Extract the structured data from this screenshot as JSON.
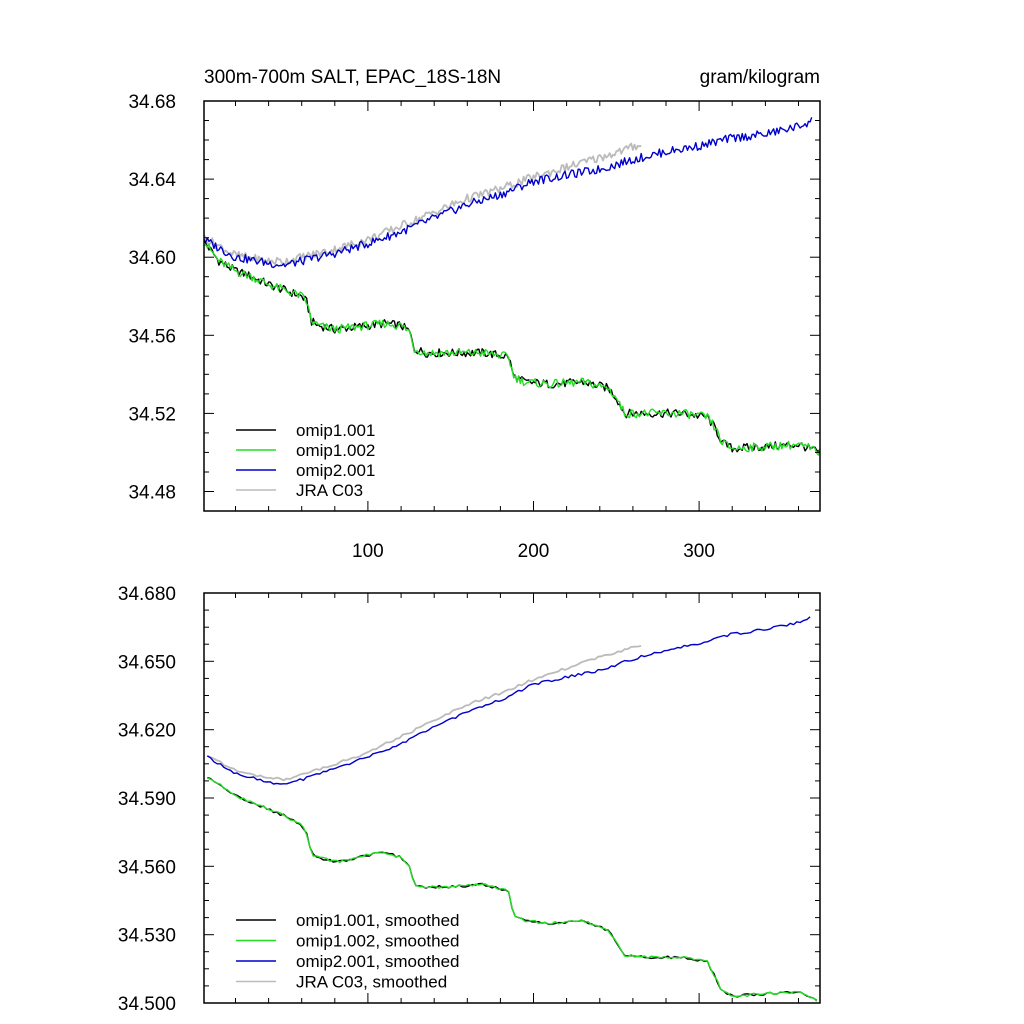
{
  "chart_data": [
    {
      "type": "line",
      "title": "300m-700m SALT, EPAC_18S-18N",
      "units": "gram/kilogram",
      "xlim": [
        1,
        373
      ],
      "ylim": [
        34.47,
        34.68
      ],
      "x_ticks": [
        100,
        200,
        300
      ],
      "x_tick_labels": [
        "100",
        "200",
        "300"
      ],
      "y_ticks": [
        34.48,
        34.52,
        34.56,
        34.6,
        34.64,
        34.68
      ],
      "y_tick_labels": [
        "34.48",
        "34.52",
        "34.56",
        "34.60",
        "34.64",
        "34.68"
      ],
      "legend_position": "bottom-left",
      "series": [
        {
          "name": "omip1.001",
          "color": "#000000",
          "x": [
            1,
            10,
            20,
            30,
            40,
            50,
            60,
            63,
            66,
            70,
            80,
            90,
            100,
            110,
            120,
            125,
            128,
            135,
            150,
            170,
            185,
            188,
            195,
            210,
            230,
            245,
            250,
            255,
            270,
            290,
            305,
            310,
            314,
            320,
            340,
            360,
            373
          ],
          "y": [
            34.608,
            34.598,
            34.593,
            34.59,
            34.586,
            34.583,
            34.58,
            34.577,
            34.567,
            34.565,
            34.563,
            34.564,
            34.565,
            34.566,
            34.565,
            34.562,
            34.553,
            34.551,
            34.551,
            34.551,
            34.549,
            34.539,
            34.536,
            34.535,
            34.536,
            34.533,
            34.528,
            34.52,
            34.52,
            34.52,
            34.518,
            34.512,
            34.505,
            34.502,
            34.503,
            34.504,
            34.5
          ]
        },
        {
          "name": "omip1.002",
          "color": "#22dd22",
          "x": [
            1,
            10,
            20,
            30,
            40,
            50,
            60,
            63,
            66,
            70,
            80,
            90,
            100,
            110,
            120,
            125,
            128,
            135,
            150,
            170,
            185,
            188,
            195,
            210,
            230,
            245,
            250,
            255,
            270,
            290,
            305,
            310,
            314,
            320,
            340,
            360,
            373
          ],
          "y": [
            34.608,
            34.598,
            34.593,
            34.59,
            34.586,
            34.583,
            34.58,
            34.577,
            34.567,
            34.565,
            34.563,
            34.564,
            34.565,
            34.566,
            34.565,
            34.562,
            34.553,
            34.551,
            34.551,
            34.551,
            34.549,
            34.539,
            34.536,
            34.535,
            34.536,
            34.533,
            34.528,
            34.52,
            34.52,
            34.52,
            34.518,
            34.512,
            34.505,
            34.502,
            34.503,
            34.504,
            34.5
          ]
        },
        {
          "name": "omip2.001",
          "color": "#0000cc",
          "x": [
            1,
            20,
            40,
            50,
            60,
            80,
            100,
            120,
            140,
            160,
            180,
            200,
            220,
            240,
            260,
            280,
            300,
            320,
            340,
            360,
            368
          ],
          "y": [
            34.609,
            34.6,
            34.597,
            34.596,
            34.598,
            34.602,
            34.607,
            34.613,
            34.62,
            34.627,
            34.632,
            34.639,
            34.642,
            34.645,
            34.65,
            34.654,
            34.657,
            34.661,
            34.663,
            34.667,
            34.67
          ]
        },
        {
          "name": "JRA C03",
          "color": "#bbbbbb",
          "x": [
            1,
            20,
            40,
            50,
            60,
            80,
            100,
            120,
            140,
            160,
            180,
            200,
            220,
            240,
            255,
            265
          ],
          "y": [
            34.61,
            34.601,
            34.598,
            34.598,
            34.6,
            34.604,
            34.609,
            34.616,
            34.623,
            34.63,
            34.635,
            34.641,
            34.646,
            34.651,
            34.655,
            34.658
          ]
        }
      ]
    },
    {
      "type": "line",
      "xlim": [
        1,
        373
      ],
      "ylim": [
        34.5,
        34.68
      ],
      "x_ticks": [
        100,
        200,
        300
      ],
      "y_ticks": [
        34.5,
        34.53,
        34.56,
        34.59,
        34.62,
        34.65,
        34.68
      ],
      "y_tick_labels": [
        "34.500",
        "34.530",
        "34.560",
        "34.590",
        "34.620",
        "34.650",
        "34.680"
      ],
      "legend_position": "bottom-left",
      "series": [
        {
          "name": "omip1.001, smoothed",
          "color": "#000000",
          "x": [
            3,
            10,
            20,
            30,
            40,
            50,
            60,
            63,
            66,
            70,
            80,
            90,
            100,
            110,
            120,
            125,
            128,
            135,
            150,
            170,
            185,
            188,
            195,
            210,
            230,
            245,
            250,
            255,
            270,
            290,
            305,
            310,
            314,
            320,
            340,
            360,
            371
          ],
          "y": [
            34.599,
            34.596,
            34.591,
            34.588,
            34.585,
            34.582,
            34.578,
            34.574,
            34.565,
            34.564,
            34.562,
            34.563,
            34.565,
            34.566,
            34.564,
            34.56,
            34.552,
            34.551,
            34.551,
            34.552,
            34.549,
            34.538,
            34.536,
            34.535,
            34.536,
            34.532,
            34.527,
            34.521,
            34.52,
            34.52,
            34.518,
            34.511,
            34.505,
            34.503,
            34.504,
            34.505,
            34.501
          ]
        },
        {
          "name": "omip1.002, smoothed",
          "color": "#22dd22",
          "x": [
            3,
            10,
            20,
            30,
            40,
            50,
            60,
            63,
            66,
            70,
            80,
            90,
            100,
            110,
            120,
            125,
            128,
            135,
            150,
            170,
            185,
            188,
            195,
            210,
            230,
            245,
            250,
            255,
            270,
            290,
            305,
            310,
            314,
            320,
            340,
            360,
            371
          ],
          "y": [
            34.599,
            34.596,
            34.591,
            34.588,
            34.585,
            34.582,
            34.578,
            34.574,
            34.565,
            34.564,
            34.562,
            34.563,
            34.565,
            34.566,
            34.564,
            34.56,
            34.552,
            34.551,
            34.551,
            34.552,
            34.549,
            34.538,
            34.536,
            34.535,
            34.536,
            34.532,
            34.527,
            34.521,
            34.52,
            34.52,
            34.518,
            34.511,
            34.505,
            34.503,
            34.504,
            34.505,
            34.501
          ]
        },
        {
          "name": "omip2.001, smoothed",
          "color": "#0000cc",
          "x": [
            3,
            20,
            40,
            50,
            60,
            80,
            100,
            120,
            140,
            160,
            180,
            200,
            220,
            240,
            260,
            280,
            300,
            320,
            340,
            360,
            368
          ],
          "y": [
            34.608,
            34.601,
            34.597,
            34.596,
            34.598,
            34.603,
            34.608,
            34.614,
            34.621,
            34.628,
            34.633,
            34.64,
            34.643,
            34.646,
            34.651,
            34.655,
            34.658,
            34.662,
            34.664,
            34.667,
            34.67
          ]
        },
        {
          "name": "JRA C03, smoothed",
          "color": "#bbbbbb",
          "x": [
            3,
            20,
            40,
            50,
            60,
            80,
            100,
            120,
            140,
            160,
            180,
            200,
            220,
            240,
            255,
            265
          ],
          "y": [
            34.609,
            34.602,
            34.599,
            34.598,
            34.6,
            34.605,
            34.61,
            34.617,
            34.624,
            34.631,
            34.636,
            34.642,
            34.647,
            34.652,
            34.655,
            34.657
          ]
        }
      ]
    }
  ]
}
